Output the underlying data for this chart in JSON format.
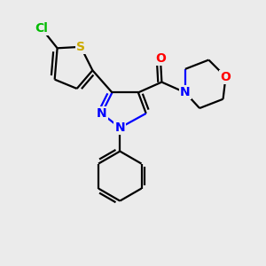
{
  "bg_color": "#ebebeb",
  "atom_colors": {
    "C": "#000000",
    "N": "#0000ff",
    "O": "#ff0000",
    "S": "#ccaa00",
    "Cl": "#00bb00"
  },
  "bond_color": "#000000",
  "bond_width": 1.6,
  "figsize": [
    3.0,
    3.0
  ],
  "dpi": 100
}
